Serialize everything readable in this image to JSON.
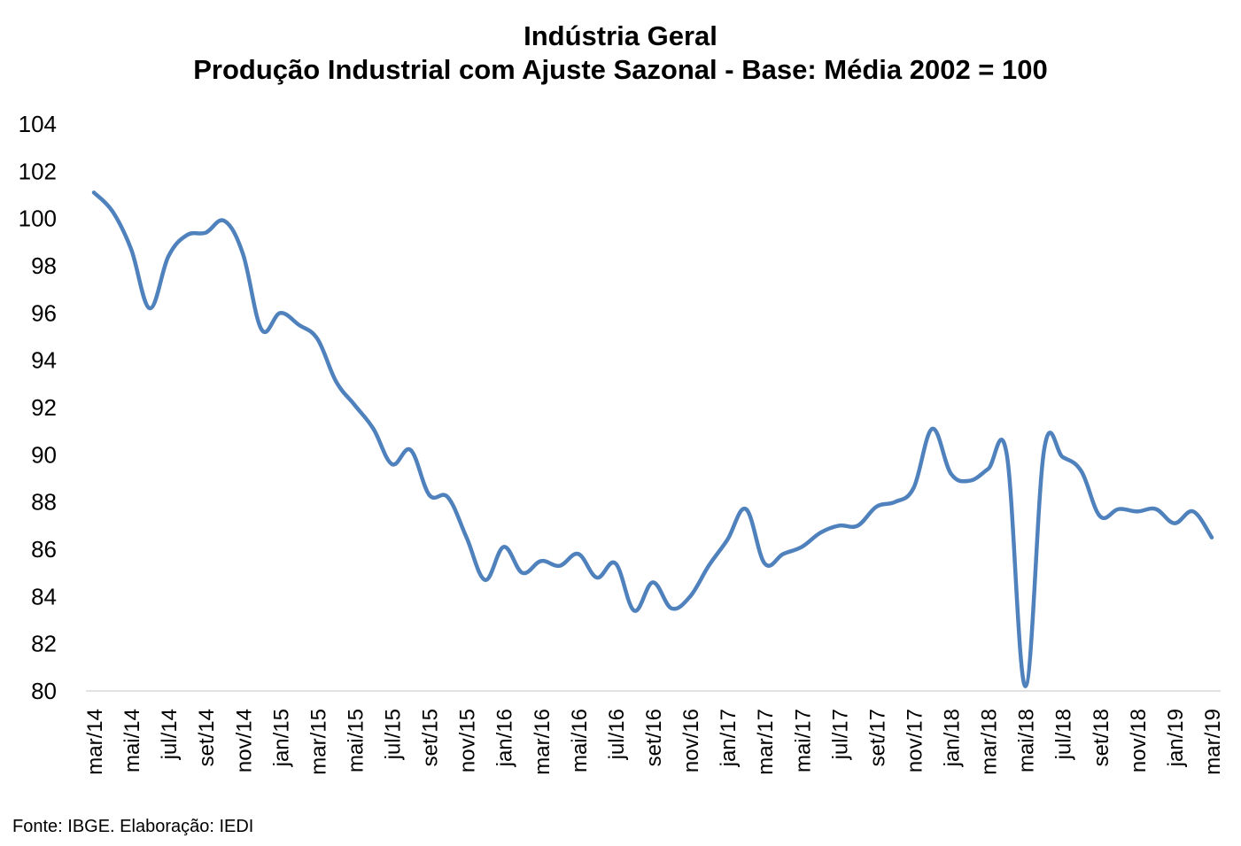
{
  "chart_data": {
    "type": "line",
    "title": "Indústria Geral",
    "subtitle": "Produção Industrial com Ajuste Sazonal - Base: Média 2002 = 100",
    "xlabel": "",
    "ylabel": "",
    "ylim": [
      80,
      104
    ],
    "yticks": [
      "80",
      "82",
      "84",
      "86",
      "88",
      "90",
      "92",
      "94",
      "96",
      "98",
      "100",
      "102",
      "104"
    ],
    "x": [
      "mar/14",
      "abr/14",
      "mai/14",
      "jun/14",
      "jul/14",
      "ago/14",
      "set/14",
      "out/14",
      "nov/14",
      "dez/14",
      "jan/15",
      "fev/15",
      "mar/15",
      "abr/15",
      "mai/15",
      "jun/15",
      "jul/15",
      "ago/15",
      "set/15",
      "out/15",
      "nov/15",
      "dez/15",
      "jan/16",
      "fev/16",
      "mar/16",
      "abr/16",
      "mai/16",
      "jun/16",
      "jul/16",
      "ago/16",
      "set/16",
      "out/16",
      "nov/16",
      "dez/16",
      "jan/17",
      "fev/17",
      "mar/17",
      "abr/17",
      "mai/17",
      "jun/17",
      "jul/17",
      "ago/17",
      "set/17",
      "out/17",
      "nov/17",
      "dez/17",
      "jan/18",
      "fev/18",
      "mar/18",
      "abr/18",
      "mai/18",
      "jun/18",
      "jul/18",
      "ago/18",
      "set/18",
      "out/18",
      "nov/18",
      "dez/18",
      "jan/19",
      "fev/19",
      "mar/19"
    ],
    "xtick_labels": [
      "mar/14",
      "mai/14",
      "jul/14",
      "set/14",
      "nov/14",
      "jan/15",
      "mar/15",
      "mai/15",
      "jul/15",
      "set/15",
      "nov/15",
      "jan/16",
      "mar/16",
      "mai/16",
      "jul/16",
      "set/16",
      "nov/16",
      "jan/17",
      "mar/17",
      "mai/17",
      "jul/17",
      "set/17",
      "nov/17",
      "jan/18",
      "mar/18",
      "mai/18",
      "jul/18",
      "set/18",
      "nov/18",
      "jan/19",
      "mar/19"
    ],
    "series": [
      {
        "color": "#4F81BD",
        "values": [
          101.1,
          100.3,
          98.7,
          96.2,
          98.4,
          99.3,
          99.4,
          99.9,
          98.5,
          95.3,
          96.0,
          95.5,
          94.9,
          93.1,
          92.1,
          91.1,
          89.6,
          90.2,
          88.3,
          88.2,
          86.5,
          84.7,
          86.1,
          85.0,
          85.5,
          85.3,
          85.8,
          84.8,
          85.4,
          83.4,
          84.6,
          83.5,
          84.0,
          85.3,
          86.4,
          87.7,
          85.4,
          85.8,
          86.1,
          86.7,
          87.0,
          87.0,
          87.8,
          88.0,
          88.6,
          91.1,
          89.2,
          88.9,
          89.4,
          90.0,
          80.2,
          90.2,
          89.9,
          89.3,
          87.4,
          87.7,
          87.6,
          87.7,
          87.1,
          87.6,
          86.5
        ]
      }
    ]
  },
  "source_note": "Fonte: IBGE. Elaboração: IEDI",
  "colors": {
    "line": "#4F81BD",
    "axis": "#d9d9d9",
    "background": "#ffffff"
  }
}
